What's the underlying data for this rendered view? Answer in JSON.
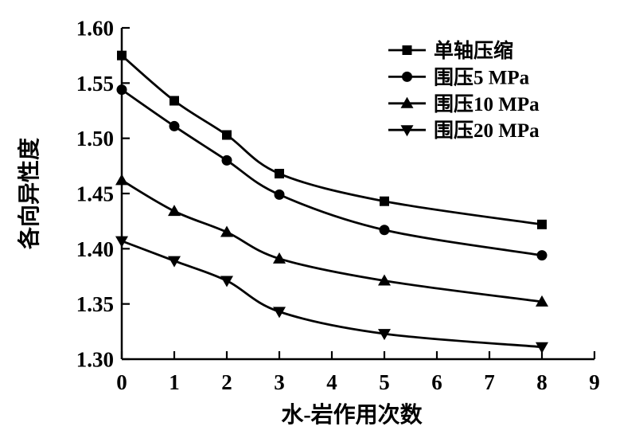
{
  "figure": {
    "background": "#ffffff",
    "ink_color": "#000000"
  },
  "chart_data": {
    "type": "line",
    "title": "",
    "xlabel": "水-岩作用次数",
    "ylabel": "各向异性度",
    "x": [
      0,
      1,
      2,
      3,
      5,
      8
    ],
    "xlim": [
      0,
      9
    ],
    "ylim": [
      1.3,
      1.6
    ],
    "x_ticks": [
      "0",
      "1",
      "2",
      "3",
      "4",
      "5",
      "6",
      "7",
      "8",
      "9"
    ],
    "x_tick_values": [
      0,
      1,
      2,
      3,
      4,
      5,
      6,
      7,
      8,
      9
    ],
    "y_ticks": [
      "1.30",
      "1.35",
      "1.40",
      "1.45",
      "1.50",
      "1.55",
      "1.60"
    ],
    "y_tick_values": [
      1.3,
      1.35,
      1.4,
      1.45,
      1.5,
      1.55,
      1.6
    ],
    "grid": false,
    "legend_position": "top-right-inside",
    "legend_boxed": false,
    "line_color": "#000000",
    "marker_color": "#000000",
    "series": [
      {
        "name": "单轴压缩",
        "marker": "square",
        "values": [
          1.575,
          1.534,
          1.503,
          1.468,
          1.443,
          1.422
        ]
      },
      {
        "name": "围压5 MPa",
        "marker": "circle",
        "values": [
          1.544,
          1.511,
          1.48,
          1.449,
          1.417,
          1.394
        ]
      },
      {
        "name": "围压10 MPa",
        "marker": "triangle-up",
        "values": [
          1.462,
          1.434,
          1.415,
          1.391,
          1.371,
          1.352
        ]
      },
      {
        "name": "围压20 MPa",
        "marker": "triangle-down",
        "values": [
          1.407,
          1.389,
          1.371,
          1.343,
          1.323,
          1.311
        ]
      }
    ]
  }
}
